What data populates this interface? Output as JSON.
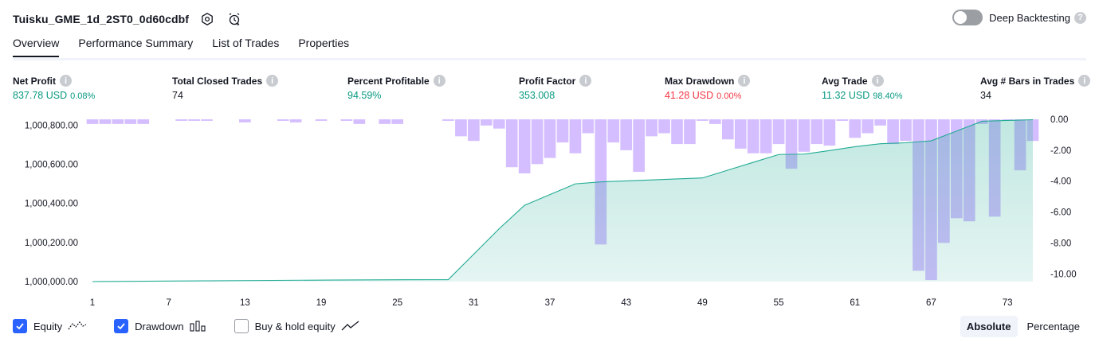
{
  "header": {
    "strategy_name": "Tuisku_GME_1d_2ST0_0d60cdbf",
    "settings_icon": "gear-icon",
    "alert_icon": "alarm-clock-icon"
  },
  "deep_backtesting": {
    "label": "Deep Backtesting",
    "enabled": false
  },
  "tabs": [
    {
      "label": "Overview",
      "active": true
    },
    {
      "label": "Performance Summary",
      "active": false
    },
    {
      "label": "List of Trades",
      "active": false
    },
    {
      "label": "Properties",
      "active": false
    }
  ],
  "metrics": {
    "net_profit": {
      "label": "Net Profit",
      "value": "837.78 USD",
      "pct": "0.08%"
    },
    "total_closed_trades": {
      "label": "Total Closed Trades",
      "value": "74"
    },
    "percent_profitable": {
      "label": "Percent Profitable",
      "value": "94.59%"
    },
    "profit_factor": {
      "label": "Profit Factor",
      "value": "353.008"
    },
    "max_drawdown": {
      "label": "Max Drawdown",
      "value": "41.28 USD",
      "pct": "0.00%"
    },
    "avg_trade": {
      "label": "Avg Trade",
      "value": "11.32 USD",
      "pct": "98.40%"
    },
    "avg_bars": {
      "label": "Avg # Bars in Trades",
      "value": "34"
    }
  },
  "chart_data": {
    "type": "area",
    "left_axis": {
      "ticks": [
        "1,000,000.00",
        "1,000,200.00",
        "1,000,400.00",
        "1,000,600.00",
        "1,000,800.00"
      ],
      "range": [
        1000000,
        1000830
      ]
    },
    "right_axis": {
      "ticks": [
        "0.00",
        "-2.00",
        "-4.00",
        "-6.00",
        "-8.00",
        "-10.00"
      ],
      "range": [
        -10.5,
        0
      ]
    },
    "x_ticks": [
      "1",
      "7",
      "13",
      "19",
      "25",
      "31",
      "37",
      "43",
      "49",
      "55",
      "61",
      "67",
      "73"
    ],
    "x_range": [
      1,
      75
    ],
    "equity": {
      "name": "Equity",
      "color": "#22ab94",
      "x": [
        1,
        10,
        20,
        29,
        31,
        33,
        35,
        37,
        39,
        41,
        43,
        45,
        47,
        49,
        51,
        53,
        55,
        57,
        59,
        61,
        63,
        65,
        67,
        69,
        71,
        73,
        75
      ],
      "values": [
        1000000,
        1000004,
        1000008,
        1000010,
        1000140,
        1000270,
        1000390,
        1000445,
        1000500,
        1000510,
        1000515,
        1000520,
        1000525,
        1000530,
        1000570,
        1000610,
        1000650,
        1000652,
        1000670,
        1000690,
        1000705,
        1000710,
        1000720,
        1000770,
        1000820,
        1000824,
        1000828
      ]
    },
    "drawdown": {
      "name": "Drawdown",
      "color": "#b388ff",
      "x": [
        1,
        2,
        3,
        4,
        5,
        8,
        9,
        10,
        13,
        16,
        17,
        19,
        21,
        22,
        24,
        25,
        29,
        30,
        31,
        32,
        33,
        34,
        35,
        36,
        37,
        38,
        39,
        40,
        41,
        42,
        43,
        44,
        45,
        46,
        47,
        48,
        49,
        50,
        51,
        52,
        53,
        54,
        55,
        56,
        57,
        58,
        59,
        60,
        61,
        62,
        63,
        64,
        65,
        66,
        67,
        68,
        69,
        70,
        71,
        72,
        73,
        74,
        75
      ],
      "values": [
        -0.3,
        -0.3,
        -0.3,
        -0.3,
        -0.3,
        -0.1,
        -0.1,
        -0.1,
        -0.2,
        -0.1,
        -0.2,
        -0.1,
        -0.1,
        -0.3,
        -0.3,
        -0.3,
        -0.1,
        -1.1,
        -1.4,
        -0.4,
        -0.6,
        -3.1,
        -3.5,
        -2.9,
        -2.5,
        -1.5,
        -2.2,
        -0.9,
        -8.1,
        -1.5,
        -2.0,
        -3.4,
        -1.1,
        -0.9,
        -1.6,
        -1.6,
        -0.1,
        -0.3,
        -1.3,
        -1.9,
        -2.2,
        -2.2,
        -1.6,
        -3.2,
        -2.1,
        -1.6,
        -1.7,
        -0.1,
        -1.2,
        -0.9,
        -0.4,
        -1.6,
        -1.4,
        -9.8,
        -10.4,
        -8.0,
        -6.4,
        -6.6,
        -0.3,
        -6.3,
        -0.1,
        -3.3,
        -1.4
      ]
    }
  },
  "legend": {
    "equity": {
      "label": "Equity",
      "checked": true
    },
    "drawdown": {
      "label": "Drawdown",
      "checked": true
    },
    "buy_hold": {
      "label": "Buy & hold equity",
      "checked": false
    }
  },
  "modes": [
    {
      "label": "Absolute",
      "active": true
    },
    {
      "label": "Percentage",
      "active": false
    }
  ]
}
